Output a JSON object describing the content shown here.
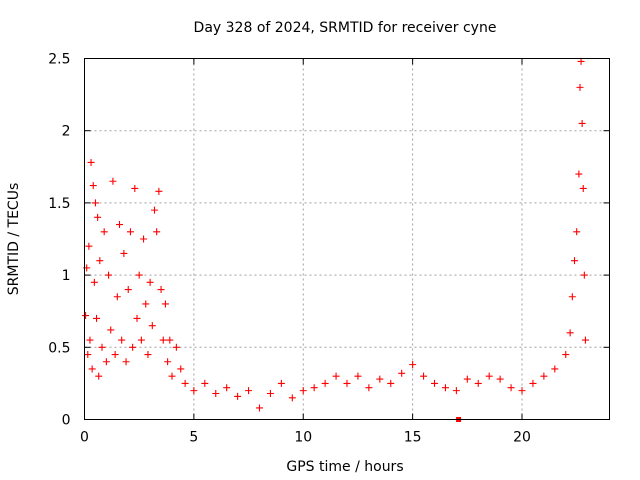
{
  "chart_data": {
    "type": "scatter",
    "title": "Day 328 of 2024, SRMTID for receiver cyne",
    "xlabel": "GPS time / hours",
    "ylabel": "SRMTID / TECUs",
    "xlim": [
      0,
      24
    ],
    "ylim": [
      0,
      2.5
    ],
    "xticks": [
      0,
      5,
      10,
      15,
      20
    ],
    "xtick_labels": [
      "0",
      "5",
      "10",
      "15",
      "20"
    ],
    "yticks": [
      0,
      0.5,
      1,
      1.5,
      2,
      2.5
    ],
    "ytick_labels": [
      "0",
      "0.5",
      "1",
      "1.5",
      "2",
      "2.5"
    ],
    "grid": true,
    "marker": "+",
    "color": "#ff0000",
    "series": [
      {
        "name": "SRMTID",
        "points": [
          [
            0.05,
            0.72
          ],
          [
            0.1,
            1.05
          ],
          [
            0.15,
            0.45
          ],
          [
            0.2,
            1.2
          ],
          [
            0.25,
            0.55
          ],
          [
            0.3,
            1.78
          ],
          [
            0.35,
            0.35
          ],
          [
            0.4,
            1.62
          ],
          [
            0.45,
            0.95
          ],
          [
            0.5,
            1.5
          ],
          [
            0.55,
            0.7
          ],
          [
            0.6,
            1.4
          ],
          [
            0.65,
            0.3
          ],
          [
            0.7,
            1.1
          ],
          [
            0.8,
            0.5
          ],
          [
            0.9,
            1.3
          ],
          [
            1.0,
            0.4
          ],
          [
            1.1,
            1.0
          ],
          [
            1.2,
            0.62
          ],
          [
            1.3,
            1.65
          ],
          [
            1.4,
            0.45
          ],
          [
            1.5,
            0.85
          ],
          [
            1.6,
            1.35
          ],
          [
            1.7,
            0.55
          ],
          [
            1.8,
            1.15
          ],
          [
            1.9,
            0.4
          ],
          [
            2.0,
            0.9
          ],
          [
            2.1,
            1.3
          ],
          [
            2.2,
            0.5
          ],
          [
            2.3,
            1.6
          ],
          [
            2.4,
            0.7
          ],
          [
            2.5,
            1.0
          ],
          [
            2.6,
            0.55
          ],
          [
            2.7,
            1.25
          ],
          [
            2.8,
            0.8
          ],
          [
            2.9,
            0.45
          ],
          [
            3.0,
            0.95
          ],
          [
            3.1,
            0.65
          ],
          [
            3.2,
            1.45
          ],
          [
            3.3,
            1.3
          ],
          [
            3.4,
            1.58
          ],
          [
            3.5,
            0.9
          ],
          [
            3.6,
            0.55
          ],
          [
            3.7,
            0.8
          ],
          [
            3.8,
            0.4
          ],
          [
            3.9,
            0.55
          ],
          [
            4.0,
            0.3
          ],
          [
            4.2,
            0.5
          ],
          [
            4.4,
            0.35
          ],
          [
            4.6,
            0.25
          ],
          [
            5.0,
            0.2
          ],
          [
            5.5,
            0.25
          ],
          [
            6.0,
            0.18
          ],
          [
            6.5,
            0.22
          ],
          [
            7.0,
            0.16
          ],
          [
            7.5,
            0.2
          ],
          [
            8.0,
            0.08
          ],
          [
            8.5,
            0.18
          ],
          [
            9.0,
            0.25
          ],
          [
            9.5,
            0.15
          ],
          [
            10.0,
            0.2
          ],
          [
            10.5,
            0.22
          ],
          [
            11.0,
            0.25
          ],
          [
            11.5,
            0.3
          ],
          [
            12.0,
            0.25
          ],
          [
            12.5,
            0.3
          ],
          [
            13.0,
            0.22
          ],
          [
            13.5,
            0.28
          ],
          [
            14.0,
            0.25
          ],
          [
            14.5,
            0.32
          ],
          [
            15.0,
            0.38
          ],
          [
            15.5,
            0.3
          ],
          [
            16.0,
            0.25
          ],
          [
            16.5,
            0.22
          ],
          [
            17.0,
            0.2
          ],
          [
            17.5,
            0.28
          ],
          [
            18.0,
            0.25
          ],
          [
            18.5,
            0.3
          ],
          [
            19.0,
            0.28
          ],
          [
            19.5,
            0.22
          ],
          [
            20.0,
            0.2
          ],
          [
            20.5,
            0.25
          ],
          [
            21.0,
            0.3
          ],
          [
            21.5,
            0.35
          ],
          [
            22.0,
            0.45
          ],
          [
            22.2,
            0.6
          ],
          [
            22.3,
            0.85
          ],
          [
            22.4,
            1.1
          ],
          [
            22.5,
            1.3
          ],
          [
            22.6,
            1.7
          ],
          [
            22.65,
            2.3
          ],
          [
            22.7,
            2.48
          ],
          [
            22.75,
            2.05
          ],
          [
            22.8,
            1.6
          ],
          [
            22.85,
            1.0
          ],
          [
            22.9,
            0.55
          ]
        ]
      }
    ],
    "extra_marker": {
      "shape": "square",
      "x": 17.1,
      "y": 0.0
    }
  }
}
